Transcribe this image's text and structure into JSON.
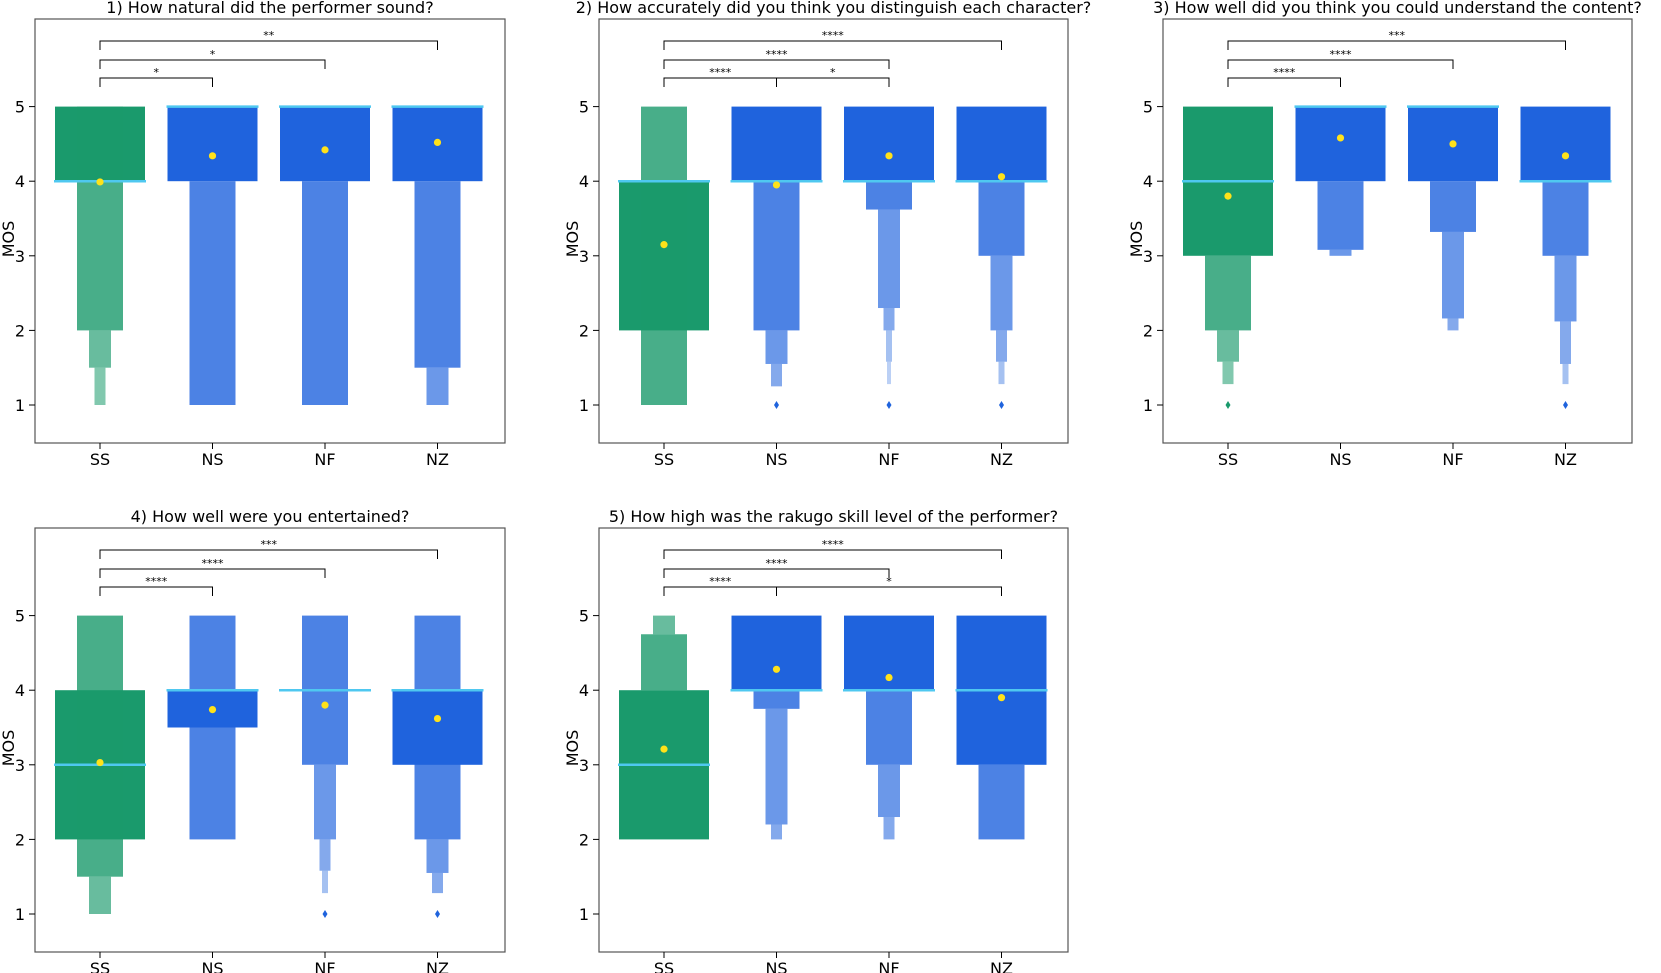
{
  "colors": {
    "SS": "#1a9a6c",
    "N": "#1f63dd",
    "median": "#4fc8f0",
    "mean": "#ffe21a",
    "frame": "#555555"
  },
  "chart_data": [
    {
      "type": "boxen",
      "title": "1) How natural did the performer sound?",
      "ylabel": "MOS",
      "ylim": [
        0.5,
        6.0
      ],
      "yticks": [
        1,
        2,
        3,
        4,
        5
      ],
      "categories": [
        "SS",
        "NS",
        "NF",
        "NZ"
      ],
      "boxes": [
        {
          "name": "SS",
          "levels": [
            [
              4,
              5
            ],
            [
              2,
              5
            ],
            [
              1.5,
              2
            ],
            [
              1,
              1.5
            ]
          ],
          "median": 4,
          "mean": 3.99,
          "outliers": []
        },
        {
          "name": "NS",
          "levels": [
            [
              4,
              5
            ],
            [
              1,
              4
            ]
          ],
          "median": 5,
          "mean": 4.34,
          "outliers": []
        },
        {
          "name": "NF",
          "levels": [
            [
              4,
              5
            ],
            [
              1,
              4
            ]
          ],
          "median": 5,
          "mean": 4.42,
          "outliers": []
        },
        {
          "name": "NZ",
          "levels": [
            [
              4,
              5
            ],
            [
              1.5,
              4
            ],
            [
              1,
              1.5
            ]
          ],
          "median": 5,
          "mean": 4.52,
          "outliers": []
        }
      ],
      "brackets": [
        {
          "from": "SS",
          "to": "NS",
          "label": "*"
        },
        {
          "from": "SS",
          "to": "NF",
          "label": "*"
        },
        {
          "from": "SS",
          "to": "NZ",
          "label": "**"
        }
      ]
    },
    {
      "type": "boxen",
      "title": "2) How accurately did you think you distinguish each character?",
      "ylabel": "MOS",
      "ylim": [
        0.5,
        6.0
      ],
      "yticks": [
        1,
        2,
        3,
        4,
        5
      ],
      "categories": [
        "SS",
        "NS",
        "NF",
        "NZ"
      ],
      "boxes": [
        {
          "name": "SS",
          "levels": [
            [
              2,
              4
            ],
            [
              1,
              5
            ]
          ],
          "median": 4,
          "mean": 3.15,
          "outliers": []
        },
        {
          "name": "NS",
          "levels": [
            [
              4,
              5
            ],
            [
              2,
              4
            ],
            [
              1.55,
              2
            ],
            [
              1.25,
              1.55
            ]
          ],
          "median": 4,
          "mean": 3.95,
          "outliers": [
            1
          ]
        },
        {
          "name": "NF",
          "levels": [
            [
              4,
              5
            ],
            [
              3.62,
              4
            ],
            [
              2.3,
              3.62
            ],
            [
              2,
              2.3
            ],
            [
              1.58,
              2
            ],
            [
              1.28,
              1.58
            ]
          ],
          "median": 4,
          "mean": 4.34,
          "outliers": [
            1
          ]
        },
        {
          "name": "NZ",
          "levels": [
            [
              4,
              5
            ],
            [
              3,
              4
            ],
            [
              2,
              3
            ],
            [
              1.58,
              2
            ],
            [
              1.28,
              1.58
            ]
          ],
          "median": 4,
          "mean": 4.06,
          "outliers": [
            1
          ]
        }
      ],
      "brackets": [
        {
          "from": "SS",
          "to": "NS",
          "label": "****"
        },
        {
          "from": "NS",
          "to": "NF",
          "label": "*"
        },
        {
          "from": "SS",
          "to": "NF",
          "label": "****"
        },
        {
          "from": "SS",
          "to": "NZ",
          "label": "****"
        }
      ]
    },
    {
      "type": "boxen",
      "title": "3) How well did you think you could understand the content?",
      "ylabel": "MOS",
      "ylim": [
        0.5,
        6.0
      ],
      "yticks": [
        1,
        2,
        3,
        4,
        5
      ],
      "categories": [
        "SS",
        "NS",
        "NF",
        "NZ"
      ],
      "boxes": [
        {
          "name": "SS",
          "levels": [
            [
              3,
              5
            ],
            [
              2,
              3
            ],
            [
              1.58,
              2
            ],
            [
              1.28,
              1.58
            ]
          ],
          "median": 4,
          "mean": 3.8,
          "outliers": [
            1
          ]
        },
        {
          "name": "NS",
          "levels": [
            [
              4,
              5
            ],
            [
              3.08,
              4
            ],
            [
              3,
              3.08
            ]
          ],
          "median": 5,
          "mean": 4.58,
          "outliers": []
        },
        {
          "name": "NF",
          "levels": [
            [
              4,
              5
            ],
            [
              3.32,
              4
            ],
            [
              2.16,
              3.32
            ],
            [
              2,
              2.16
            ]
          ],
          "median": 5,
          "mean": 4.5,
          "outliers": []
        },
        {
          "name": "NZ",
          "levels": [
            [
              4,
              5
            ],
            [
              3,
              4
            ],
            [
              2.12,
              3
            ],
            [
              1.55,
              2.12
            ],
            [
              1.28,
              1.55
            ]
          ],
          "median": 4,
          "mean": 4.34,
          "outliers": [
            1
          ]
        }
      ],
      "brackets": [
        {
          "from": "SS",
          "to": "NS",
          "label": "****"
        },
        {
          "from": "SS",
          "to": "NF",
          "label": "****"
        },
        {
          "from": "SS",
          "to": "NZ",
          "label": "***"
        }
      ]
    },
    {
      "type": "boxen",
      "title": "4) How well were you entertained?",
      "ylabel": "MOS",
      "ylim": [
        0.5,
        6.0
      ],
      "yticks": [
        1,
        2,
        3,
        4,
        5
      ],
      "categories": [
        "SS",
        "NS",
        "NF",
        "NZ"
      ],
      "boxes": [
        {
          "name": "SS",
          "levels": [
            [
              2,
              4
            ],
            [
              1.5,
              5
            ],
            [
              1,
              1.5
            ]
          ],
          "median": 3,
          "mean": 3.03,
          "outliers": []
        },
        {
          "name": "NS",
          "levels": [
            [
              3.5,
              4
            ],
            [
              2,
              5
            ]
          ],
          "median": 4,
          "mean": 3.74,
          "outliers": []
        },
        {
          "name": "NF",
          "levels": [
            [
              4,
              4
            ],
            [
              3,
              5
            ],
            [
              2,
              3
            ],
            [
              1.58,
              2
            ],
            [
              1.28,
              1.58
            ]
          ],
          "median": 4,
          "mean": 3.8,
          "outliers": [
            1
          ]
        },
        {
          "name": "NZ",
          "levels": [
            [
              3,
              4
            ],
            [
              2,
              5
            ],
            [
              1.55,
              2
            ],
            [
              1.28,
              1.55
            ]
          ],
          "median": 4,
          "mean": 3.62,
          "outliers": [
            1
          ]
        }
      ],
      "brackets": [
        {
          "from": "SS",
          "to": "NS",
          "label": "****"
        },
        {
          "from": "SS",
          "to": "NF",
          "label": "****"
        },
        {
          "from": "SS",
          "to": "NZ",
          "label": "***"
        }
      ]
    },
    {
      "type": "boxen",
      "title": "5) How high was the rakugo skill level of the performer?",
      "ylabel": "MOS",
      "ylim": [
        0.5,
        6.0
      ],
      "yticks": [
        1,
        2,
        3,
        4,
        5
      ],
      "categories": [
        "SS",
        "NS",
        "NF",
        "NZ"
      ],
      "boxes": [
        {
          "name": "SS",
          "levels": [
            [
              2,
              4
            ],
            [
              4,
              4.75
            ],
            [
              4.75,
              5
            ]
          ],
          "median": 3,
          "mean": 3.21,
          "outliers": []
        },
        {
          "name": "NS",
          "levels": [
            [
              4,
              5
            ],
            [
              3.75,
              4
            ],
            [
              2.2,
              3.75
            ],
            [
              2,
              2.2
            ]
          ],
          "median": 4,
          "mean": 4.28,
          "outliers": []
        },
        {
          "name": "NF",
          "levels": [
            [
              4,
              5
            ],
            [
              3,
              4
            ],
            [
              2.3,
              3
            ],
            [
              2,
              2.3
            ]
          ],
          "median": 4,
          "mean": 4.17,
          "outliers": []
        },
        {
          "name": "NZ",
          "levels": [
            [
              3,
              5
            ],
            [
              2,
              3
            ]
          ],
          "median": 4,
          "mean": 3.9,
          "outliers": []
        }
      ],
      "brackets": [
        {
          "from": "SS",
          "to": "NS",
          "label": "****"
        },
        {
          "from": "NS",
          "to": "NZ",
          "label": "*"
        },
        {
          "from": "SS",
          "to": "NF",
          "label": "****"
        },
        {
          "from": "SS",
          "to": "NZ",
          "label": "****"
        }
      ]
    }
  ]
}
